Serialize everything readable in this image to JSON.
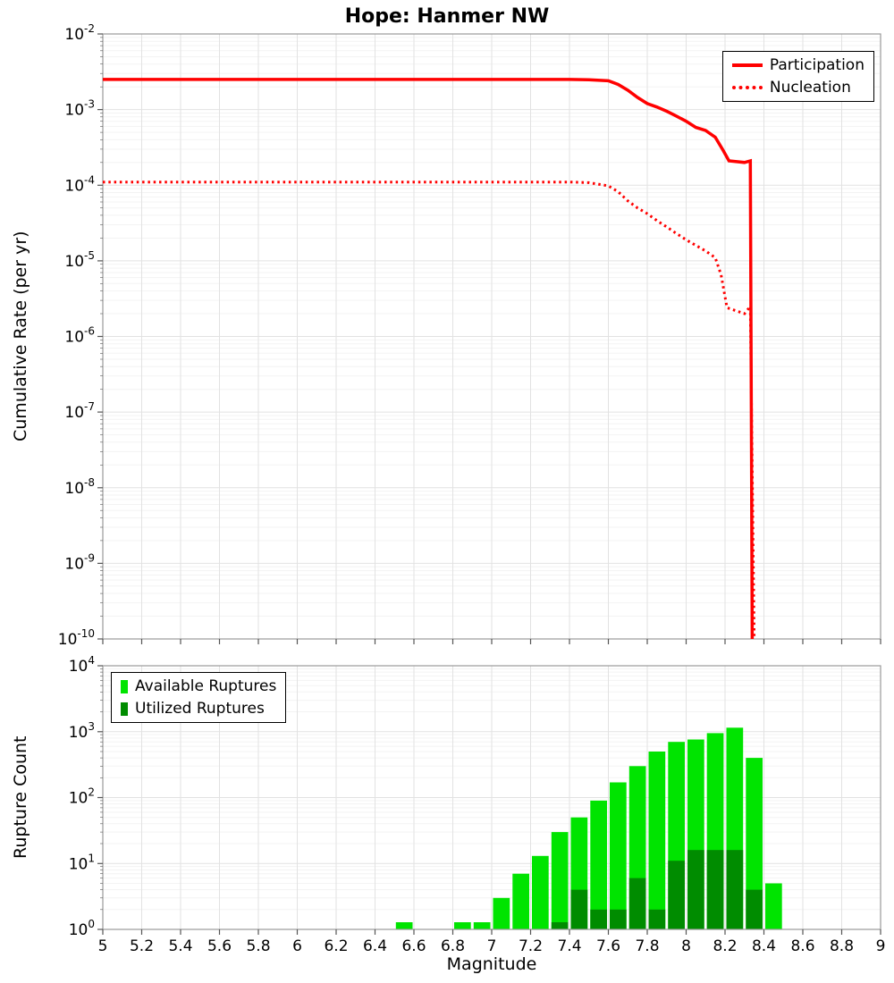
{
  "title": "Hope: Hanmer NW",
  "colors": {
    "line": "#ff0000",
    "available": "#00e400",
    "utilized": "#008c00",
    "grid_major": "#e2e2e2",
    "grid_minor": "#f3f3f3",
    "frame": "#9a9a9a",
    "tick": "#555555",
    "text": "#000000",
    "background": "#ffffff"
  },
  "chart_data": [
    {
      "type": "line",
      "title": "Hope: Hanmer NW",
      "xlabel": "Magnitude",
      "ylabel": "Cumulative Rate (per yr)",
      "xscale": "linear",
      "yscale": "log",
      "xlim": [
        5,
        9
      ],
      "ylim": [
        1e-10,
        0.01
      ],
      "x_ticks": [
        5,
        5.2,
        5.4,
        5.6,
        5.8,
        6,
        6.2,
        6.4,
        6.6,
        6.8,
        7,
        7.2,
        7.4,
        7.6,
        7.8,
        8,
        8.2,
        8.4,
        8.6,
        8.8,
        9
      ],
      "y_tick_exponents": [
        -2,
        -3,
        -4,
        -5,
        -6,
        -7,
        -8,
        -9,
        -10
      ],
      "grid": true,
      "legend_position": "top-right",
      "series": [
        {
          "name": "Participation",
          "color": "#ff0000",
          "line_style": "solid",
          "points": [
            [
              5.0,
              0.0025
            ],
            [
              7.4,
              0.0025
            ],
            [
              7.5,
              0.00248
            ],
            [
              7.6,
              0.0024
            ],
            [
              7.65,
              0.00215
            ],
            [
              7.7,
              0.0018
            ],
            [
              7.75,
              0.00145
            ],
            [
              7.8,
              0.0012
            ],
            [
              7.85,
              0.00108
            ],
            [
              7.9,
              0.00095
            ],
            [
              7.95,
              0.00082
            ],
            [
              8.0,
              0.0007
            ],
            [
              8.05,
              0.00058
            ],
            [
              8.1,
              0.00053
            ],
            [
              8.15,
              0.00043
            ],
            [
              8.19,
              0.00029
            ],
            [
              8.22,
              0.00021
            ],
            [
              8.3,
              0.0002
            ],
            [
              8.33,
              0.00021
            ],
            [
              8.34,
              1e-10
            ]
          ]
        },
        {
          "name": "Nucleation",
          "color": "#ff0000",
          "line_style": "dotted",
          "points": [
            [
              5.0,
              0.00011
            ],
            [
              7.4,
              0.00011
            ],
            [
              7.5,
              0.000108
            ],
            [
              7.6,
              9.8e-05
            ],
            [
              7.65,
              8.2e-05
            ],
            [
              7.7,
              6.2e-05
            ],
            [
              7.75,
              5e-05
            ],
            [
              7.8,
              4.2e-05
            ],
            [
              7.85,
              3.4e-05
            ],
            [
              7.9,
              2.8e-05
            ],
            [
              7.95,
              2.3e-05
            ],
            [
              8.0,
              1.9e-05
            ],
            [
              8.05,
              1.6e-05
            ],
            [
              8.1,
              1.35e-05
            ],
            [
              8.15,
              1.1e-05
            ],
            [
              8.18,
              6.5e-06
            ],
            [
              8.21,
              2.4e-06
            ],
            [
              8.3,
              2e-06
            ],
            [
              8.33,
              2.5e-06
            ],
            [
              8.35,
              1e-10
            ]
          ]
        }
      ]
    },
    {
      "type": "bar",
      "title": "",
      "xlabel": "Magnitude",
      "ylabel": "Rupture Count",
      "xscale": "linear",
      "yscale": "log",
      "xlim": [
        5,
        9
      ],
      "ylim": [
        1,
        10000
      ],
      "bin_width": 0.1,
      "x_ticks": [
        5,
        5.2,
        5.4,
        5.6,
        5.8,
        6,
        6.2,
        6.4,
        6.6,
        6.8,
        7,
        7.2,
        7.4,
        7.6,
        7.8,
        8,
        8.2,
        8.4,
        8.6,
        8.8,
        9
      ],
      "x_tick_labels": [
        "5",
        "5.2",
        "5.4",
        "5.6",
        "5.8",
        "6",
        "6.2",
        "6.4",
        "6.6",
        "6.8",
        "7",
        "7.2",
        "7.4",
        "7.6",
        "7.8",
        "8",
        "8.2",
        "8.4",
        "8.6",
        "8.8",
        "9"
      ],
      "y_tick_exponents": [
        0,
        1,
        2,
        3,
        4
      ],
      "grid": true,
      "legend_position": "top-left",
      "series": [
        {
          "name": "Available Ruptures",
          "color": "#00e400",
          "bins": [
            [
              6.5,
              1
            ],
            [
              6.8,
              1
            ],
            [
              6.9,
              1
            ],
            [
              7.0,
              3
            ],
            [
              7.1,
              7
            ],
            [
              7.2,
              13
            ],
            [
              7.3,
              30
            ],
            [
              7.4,
              50
            ],
            [
              7.5,
              90
            ],
            [
              7.6,
              170
            ],
            [
              7.7,
              300
            ],
            [
              7.8,
              500
            ],
            [
              7.9,
              700
            ],
            [
              8.0,
              760
            ],
            [
              8.1,
              950
            ],
            [
              8.2,
              1150
            ],
            [
              8.3,
              400
            ],
            [
              8.4,
              5
            ]
          ]
        },
        {
          "name": "Utilized Ruptures",
          "color": "#008c00",
          "bins": [
            [
              7.3,
              1
            ],
            [
              7.4,
              4
            ],
            [
              7.5,
              2
            ],
            [
              7.6,
              2
            ],
            [
              7.7,
              6
            ],
            [
              7.8,
              2
            ],
            [
              7.9,
              11
            ],
            [
              8.0,
              16
            ],
            [
              8.1,
              16
            ],
            [
              8.2,
              16
            ],
            [
              8.3,
              4
            ]
          ]
        }
      ]
    }
  ]
}
